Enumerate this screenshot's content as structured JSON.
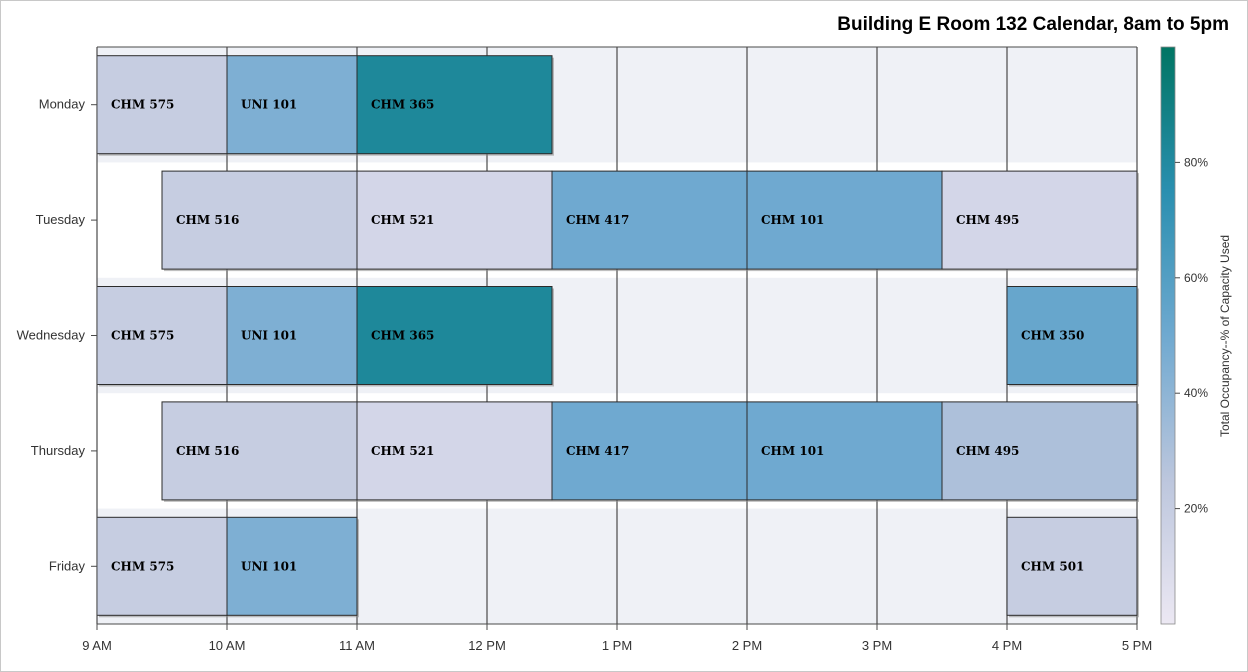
{
  "chart_data": {
    "type": "bar",
    "subtype": "horizontal-schedule",
    "title": "Building E Room 132 Calendar, 8am to 5pm",
    "x_ticks": [
      "9 AM",
      "10 AM",
      "11 AM",
      "12 PM",
      "1 PM",
      "2 PM",
      "3 PM",
      "4 PM",
      "5 PM"
    ],
    "x_range_hours": [
      9,
      17
    ],
    "days": [
      "Monday",
      "Tuesday",
      "Wednesday",
      "Thursday",
      "Friday"
    ],
    "colorbar": {
      "label": "Total Occupancy--% of Capacity Used",
      "ticks": [
        "20%",
        "40%",
        "60%",
        "80%"
      ],
      "range": [
        0,
        100
      ],
      "colors": [
        "#ece8f3",
        "#bcc6dd",
        "#6fa9d0",
        "#2a8fb0",
        "#007563"
      ]
    },
    "classes": [
      {
        "day": "Monday",
        "course": "CHM 575",
        "start": 9,
        "end": 10,
        "occupancy": 20
      },
      {
        "day": "Monday",
        "course": "UNI 101",
        "start": 10,
        "end": 11,
        "occupancy": 45
      },
      {
        "day": "Monday",
        "course": "CHM 365",
        "start": 11,
        "end": 12.5,
        "occupancy": 82
      },
      {
        "day": "Tuesday",
        "course": "CHM 516",
        "start": 9.5,
        "end": 11,
        "occupancy": 20
      },
      {
        "day": "Tuesday",
        "course": "CHM 521",
        "start": 11,
        "end": 12.5,
        "occupancy": 13
      },
      {
        "day": "Tuesday",
        "course": "CHM 417",
        "start": 12.5,
        "end": 14,
        "occupancy": 50
      },
      {
        "day": "Tuesday",
        "course": "CHM 101",
        "start": 14,
        "end": 15.5,
        "occupancy": 50
      },
      {
        "day": "Tuesday",
        "course": "CHM 495",
        "start": 15.5,
        "end": 17,
        "occupancy": 13
      },
      {
        "day": "Wednesday",
        "course": "CHM 575",
        "start": 9,
        "end": 10,
        "occupancy": 20
      },
      {
        "day": "Wednesday",
        "course": "UNI 101",
        "start": 10,
        "end": 11,
        "occupancy": 45
      },
      {
        "day": "Wednesday",
        "course": "CHM 365",
        "start": 11,
        "end": 12.5,
        "occupancy": 82
      },
      {
        "day": "Wednesday",
        "course": "CHM 350",
        "start": 16,
        "end": 17,
        "occupancy": 53
      },
      {
        "day": "Thursday",
        "course": "CHM 516",
        "start": 9.5,
        "end": 11,
        "occupancy": 20
      },
      {
        "day": "Thursday",
        "course": "CHM 521",
        "start": 11,
        "end": 12.5,
        "occupancy": 13
      },
      {
        "day": "Thursday",
        "course": "CHM 417",
        "start": 12.5,
        "end": 14,
        "occupancy": 50
      },
      {
        "day": "Thursday",
        "course": "CHM 101",
        "start": 14,
        "end": 15.5,
        "occupancy": 50
      },
      {
        "day": "Thursday",
        "course": "CHM 495",
        "start": 15.5,
        "end": 17,
        "occupancy": 30
      },
      {
        "day": "Friday",
        "course": "CHM 575",
        "start": 9,
        "end": 10,
        "occupancy": 20
      },
      {
        "day": "Friday",
        "course": "UNI 101",
        "start": 10,
        "end": 11,
        "occupancy": 45
      },
      {
        "day": "Friday",
        "course": "CHM 501",
        "start": 16,
        "end": 17,
        "occupancy": 20
      }
    ],
    "grid": true,
    "legend_position": "right"
  }
}
